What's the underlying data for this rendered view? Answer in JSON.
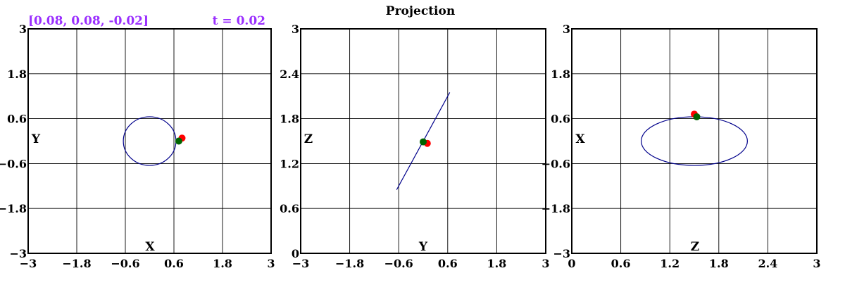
{
  "title": "Projection",
  "readout": {
    "position": "[0.08, 0.08, -0.02]",
    "time": "t = 0.02",
    "color": "#9b30ff"
  },
  "colors": {
    "curve": "#00008b",
    "marker_current": "#ff0000",
    "marker_previous": "#006400",
    "grid": "#000000"
  },
  "chart_data": [
    {
      "type": "line",
      "name": "xy",
      "xlabel": "X",
      "ylabel": "Y",
      "xlim": [
        -3,
        3
      ],
      "ylim": [
        -3,
        3
      ],
      "xticks": [
        -3,
        -1.8,
        -0.6,
        0.6,
        1.8,
        3
      ],
      "yticks": [
        -3,
        -1.8,
        -0.6,
        0.6,
        1.8,
        3
      ],
      "xtick_labels": [
        "−3",
        "−1.8",
        "−0.6",
        "0.6",
        "1.8",
        "3"
      ],
      "ytick_labels": [
        "−3",
        "−1.8",
        "−0.6",
        "0.6",
        "1.8",
        "3"
      ],
      "grid": true,
      "curve": {
        "shape": "ellipse",
        "center": [
          0.0,
          0.0
        ],
        "radii": [
          0.65,
          0.65
        ],
        "rotation_deg": 0
      },
      "markers": [
        {
          "role": "current",
          "x": 0.8,
          "y": 0.08
        },
        {
          "role": "previous",
          "x": 0.72,
          "y": 0.0
        }
      ]
    },
    {
      "type": "line",
      "name": "yz",
      "xlabel": "Y",
      "ylabel": "Z",
      "xlim": [
        -3,
        3
      ],
      "ylim": [
        0,
        3
      ],
      "xticks": [
        -3,
        -1.8,
        -0.6,
        0.6,
        1.8,
        3
      ],
      "yticks": [
        0,
        0.6,
        1.2,
        1.8,
        2.4,
        3
      ],
      "xtick_labels": [
        "−3",
        "−1.8",
        "−0.6",
        "0.6",
        "1.8",
        "3"
      ],
      "ytick_labels": [
        "0",
        "0.6",
        "1.2",
        "1.8",
        "2.4",
        "3"
      ],
      "grid": true,
      "curve": {
        "shape": "segment",
        "points": [
          [
            -0.65,
            0.85
          ],
          [
            0.65,
            2.15
          ]
        ]
      },
      "markers": [
        {
          "role": "current",
          "x": 0.1,
          "y": 1.47
        },
        {
          "role": "previous",
          "x": 0.0,
          "y": 1.49
        }
      ]
    },
    {
      "type": "line",
      "name": "zx",
      "xlabel": "Z",
      "ylabel": "X",
      "xlim": [
        0,
        3
      ],
      "ylim": [
        -3,
        3
      ],
      "xticks": [
        0,
        0.6,
        1.2,
        1.8,
        2.4,
        3
      ],
      "yticks": [
        -3,
        -1.8,
        -0.6,
        0.6,
        1.8,
        3
      ],
      "xtick_labels": [
        "0",
        "0.6",
        "1.2",
        "1.8",
        "2.4",
        "3"
      ],
      "ytick_labels": [
        "−3",
        "−1.8",
        "−0.6",
        "0.6",
        "1.8",
        "3"
      ],
      "grid": true,
      "curve": {
        "shape": "ellipse",
        "center": [
          1.5,
          0.0
        ],
        "radii": [
          0.65,
          0.65
        ],
        "rotation_deg": 0
      },
      "markers": [
        {
          "role": "current",
          "x": 1.5,
          "y": 0.72
        },
        {
          "role": "previous",
          "x": 1.53,
          "y": 0.65
        }
      ]
    }
  ]
}
